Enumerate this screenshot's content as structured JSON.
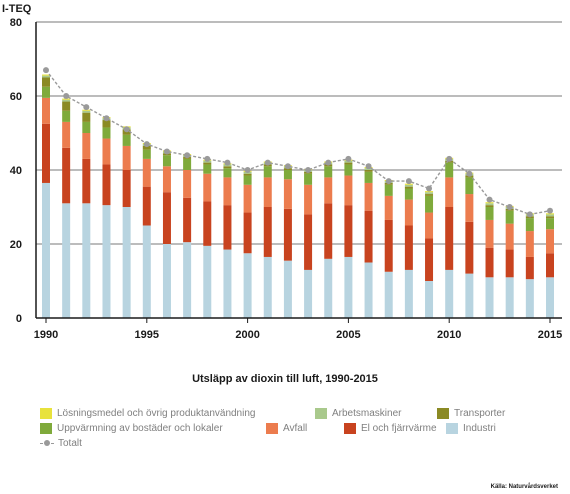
{
  "chart_data": {
    "type": "bar",
    "stacked": true,
    "ylabel": "I-TEQ",
    "ylim": [
      0,
      80
    ],
    "yticks": [
      0,
      20,
      40,
      60,
      80
    ],
    "grid": true,
    "x": [
      1990,
      1991,
      1992,
      1993,
      1994,
      1995,
      1996,
      1997,
      1998,
      1999,
      2000,
      2001,
      2002,
      2003,
      2004,
      2005,
      2006,
      2007,
      2008,
      2009,
      2010,
      2011,
      2012,
      2013,
      2014,
      2015
    ],
    "xticks": [
      1990,
      1995,
      2000,
      2005,
      2010,
      2015
    ],
    "series": [
      {
        "name": "Industri",
        "color": "#b8d4e0",
        "values": [
          36.5,
          31,
          31,
          30.5,
          30,
          25,
          20,
          20.5,
          19.5,
          18.5,
          17.5,
          16.5,
          15.5,
          13,
          16,
          16.5,
          15,
          12.5,
          13,
          10,
          13,
          12,
          11,
          11,
          10.5,
          11
        ]
      },
      {
        "name": "El och fjärrvärme",
        "color": "#c8431f",
        "values": [
          16,
          15,
          12,
          11,
          10,
          10.5,
          14,
          12,
          12,
          12,
          11,
          13.5,
          14,
          15,
          15,
          14,
          14,
          14,
          12,
          11.5,
          17,
          14,
          8,
          7.5,
          6,
          6.5
        ]
      },
      {
        "name": "Avfall",
        "color": "#ec7c4e",
        "values": [
          7,
          7,
          7,
          7,
          6.5,
          7.5,
          7,
          7.5,
          7.5,
          7.5,
          7.5,
          8,
          8,
          8,
          7,
          8,
          7.5,
          6.5,
          7,
          7,
          8,
          7.5,
          7.5,
          7,
          7,
          6.5
        ]
      },
      {
        "name": "Uppvärmning av bostäder och lokaler",
        "color": "#7faa3b",
        "values": [
          3,
          3,
          3,
          3,
          3,
          2.5,
          3,
          3,
          2.5,
          2.5,
          2.5,
          3,
          2.5,
          3,
          3,
          3,
          3,
          3,
          3,
          4.5,
          4,
          4.5,
          3.5,
          3.5,
          3.5,
          3
        ]
      },
      {
        "name": "Transporter",
        "color": "#8b8a24",
        "values": [
          2.5,
          2.5,
          2.5,
          2,
          1.5,
          1,
          0.5,
          0.5,
          0.5,
          0.5,
          0.5,
          0.5,
          0.5,
          0.5,
          0.5,
          0.5,
          0.5,
          0.5,
          0.5,
          0.5,
          0.5,
          0.5,
          0.5,
          0.5,
          0.5,
          0.5
        ]
      },
      {
        "name": "Arbetsmaskiner",
        "color": "#a9c98c",
        "values": [
          0.5,
          0.5,
          0.5,
          0.5,
          0.5,
          0.5,
          0.5,
          0.5,
          0.5,
          0.5,
          0.5,
          0.5,
          0.5,
          0.5,
          0.5,
          0.5,
          0.5,
          0.5,
          0.5,
          0.5,
          0.5,
          0.5,
          0.5,
          0.5,
          0.5,
          0.5
        ]
      },
      {
        "name": "Lösningsmedel och övrig produktanvändning",
        "color": "#e8e23c",
        "values": [
          0.3,
          0.3,
          0.3,
          0.3,
          0.3,
          0.3,
          0.3,
          0.3,
          0.3,
          0.3,
          0.3,
          0.3,
          0.3,
          0.3,
          0.3,
          0.3,
          0.3,
          0.3,
          0.3,
          0.3,
          0.3,
          0.3,
          0.3,
          0.3,
          0.3,
          0.3
        ]
      }
    ],
    "total": {
      "name": "Totalt",
      "color": "#9a9a9a",
      "values": [
        67,
        60,
        57,
        54,
        51,
        47,
        45,
        44,
        43,
        42,
        40,
        42,
        41,
        40,
        42,
        43,
        41,
        37,
        37,
        35,
        43,
        39,
        32,
        30,
        28,
        29
      ]
    },
    "title": "Utsläpp av dioxin till luft, 1990-2015",
    "source": "Källa: Naturvårdsverket",
    "legend_position": "bottom"
  },
  "legend": [
    {
      "label": "Lösningsmedel och övrig produktanvändning",
      "color": "#e8e23c"
    },
    {
      "label": "Arbetsmaskiner",
      "color": "#a9c98c"
    },
    {
      "label": "Transporter",
      "color": "#8b8a24"
    },
    {
      "label": "Uppvärmning av bostäder och lokaler",
      "color": "#7faa3b"
    },
    {
      "label": "Avfall",
      "color": "#ec7c4e"
    },
    {
      "label": "El och fjärrvärme",
      "color": "#c8431f"
    },
    {
      "label": "Industri",
      "color": "#b8d4e0"
    },
    {
      "label": "Totalt",
      "color": "#9a9a9a"
    }
  ]
}
